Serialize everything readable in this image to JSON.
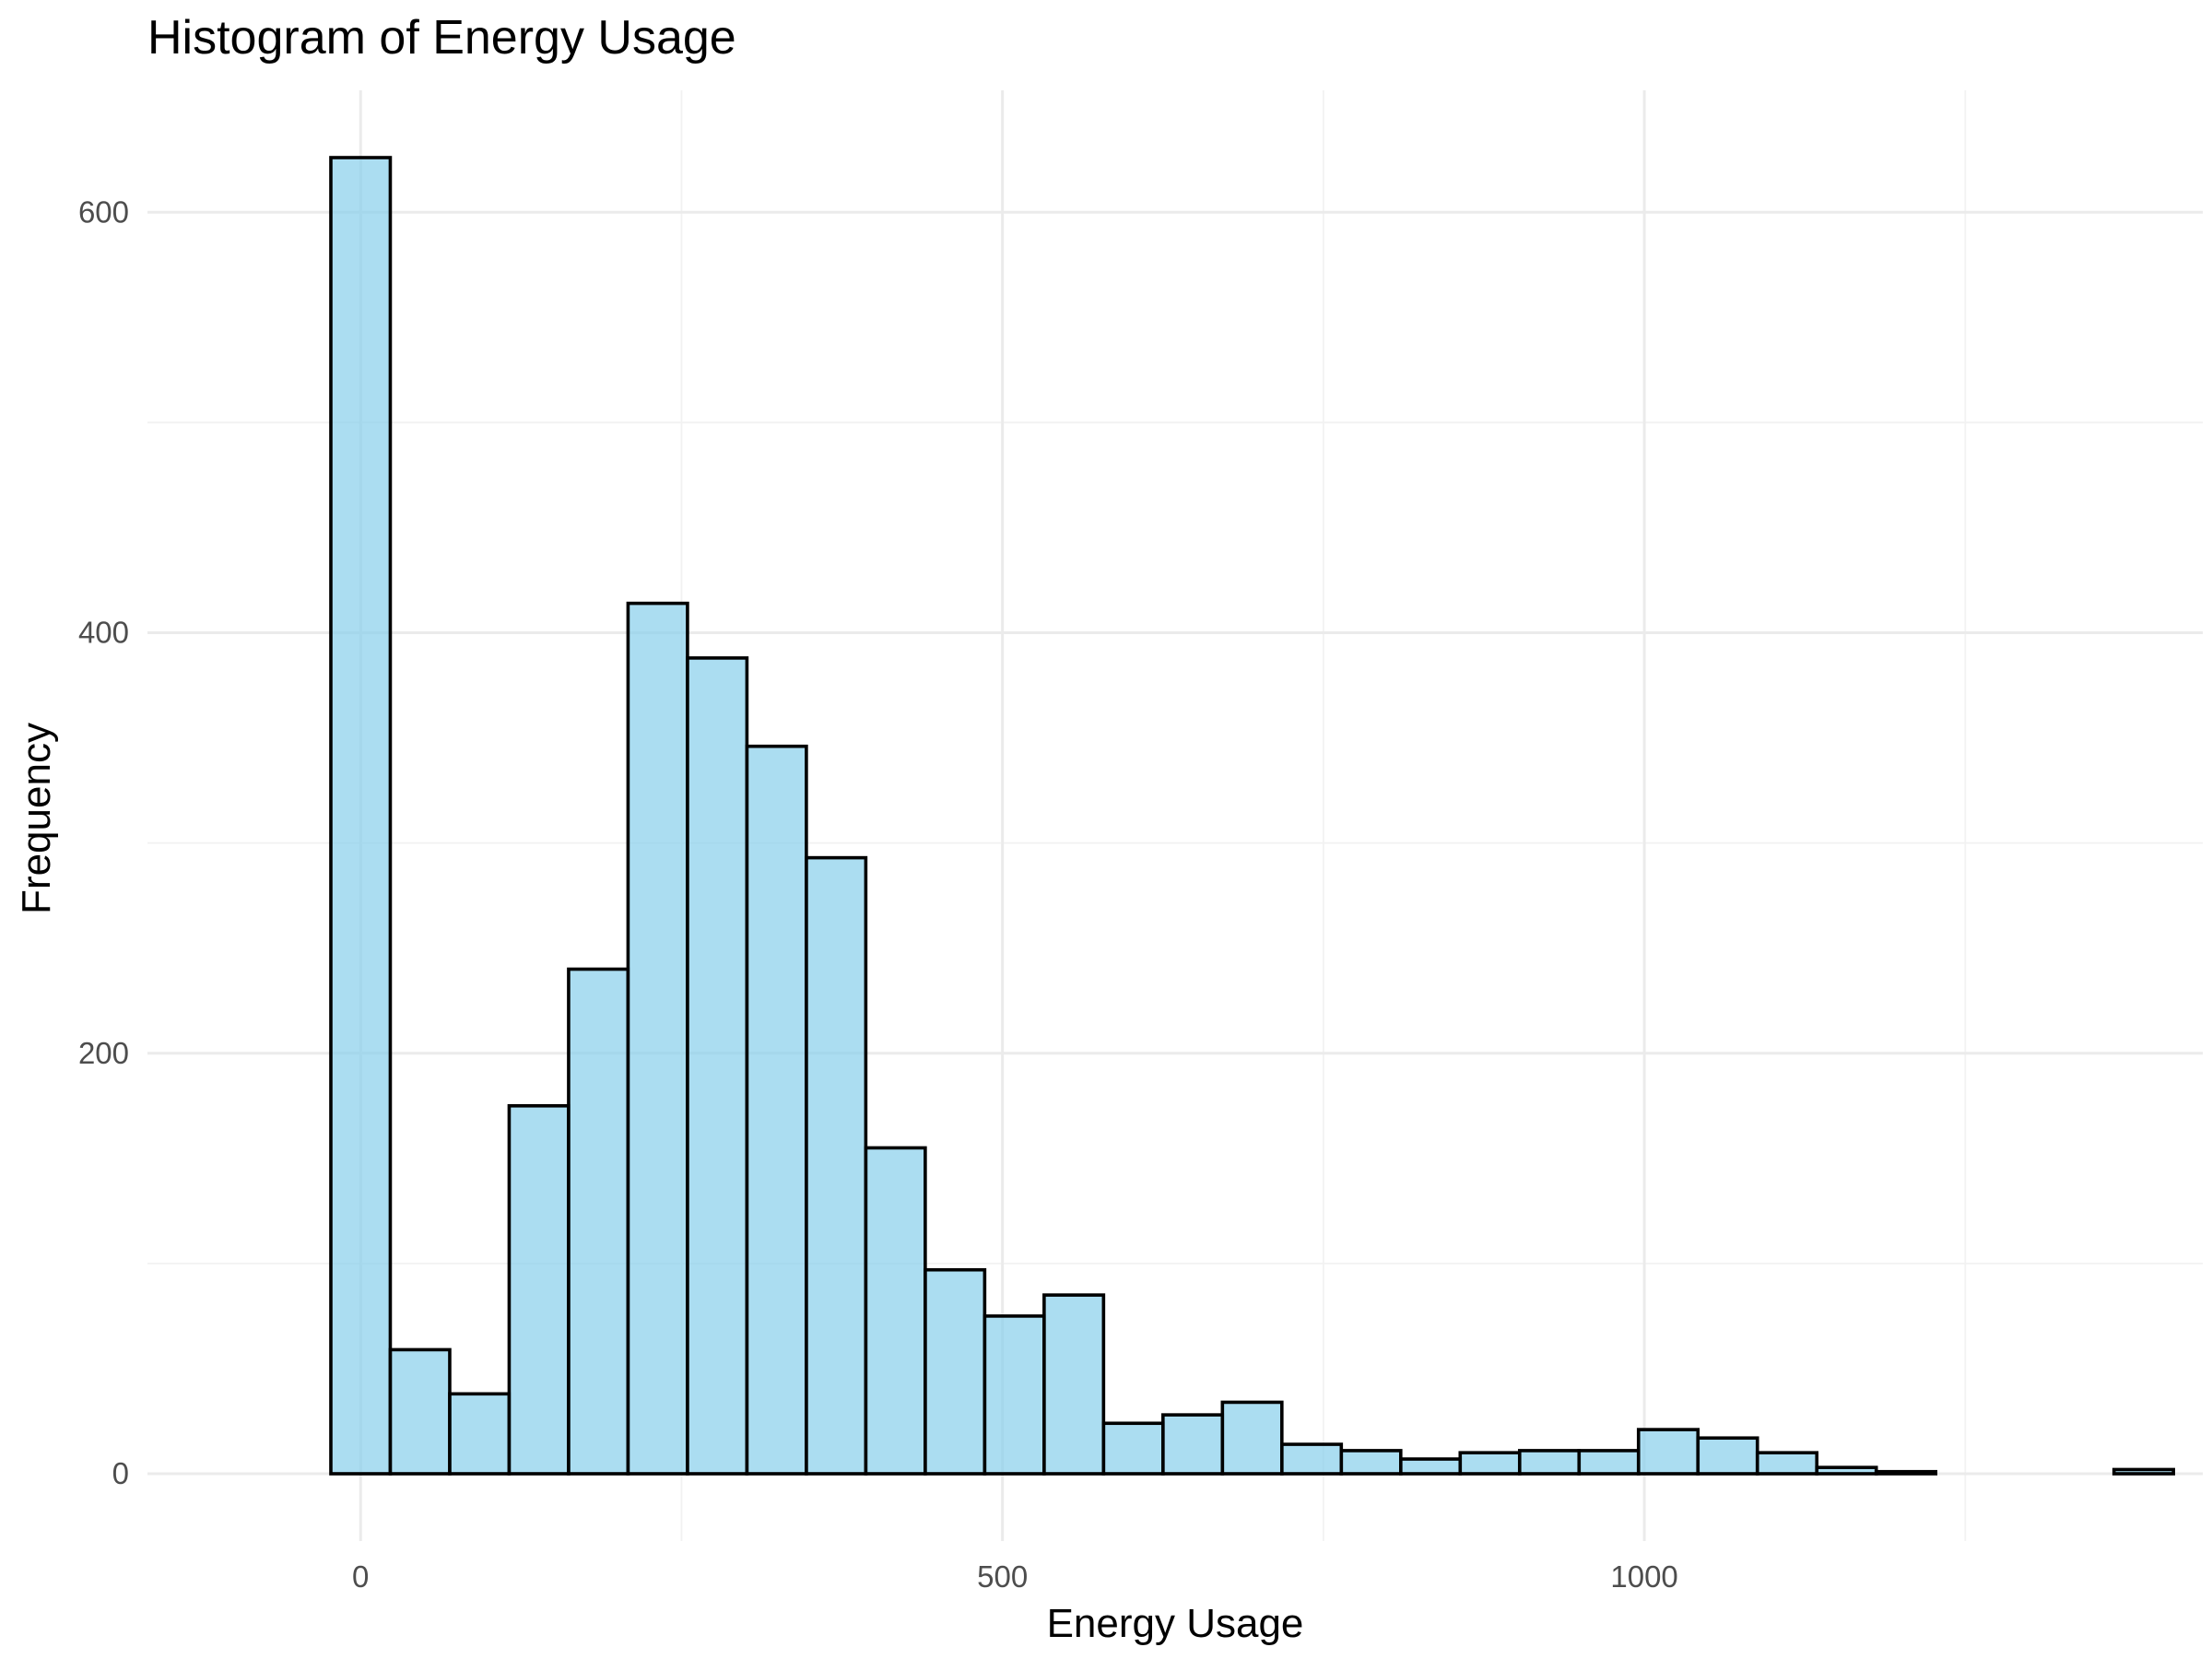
{
  "chart_data": {
    "type": "bar",
    "title": "Histogram of Energy Usage",
    "xlabel": "Energy Usage",
    "ylabel": "Frequency",
    "bin_width": 46.3,
    "bin_start": -23.15,
    "x_ticks": [
      0,
      500,
      1000
    ],
    "x_tick_labels": [
      "0",
      "500",
      "1000"
    ],
    "y_ticks": [
      0,
      200,
      400,
      600
    ],
    "y_tick_labels": [
      "0",
      "200",
      "400",
      "600"
    ],
    "xlim": [
      -166,
      1435
    ],
    "ylim": [
      -32,
      658
    ],
    "grid": true,
    "values": [
      626,
      59,
      38,
      175,
      240,
      414,
      388,
      346,
      293,
      155,
      97,
      75,
      85,
      24,
      28,
      34,
      14,
      11,
      7,
      10,
      11,
      11,
      21,
      17,
      10,
      3,
      1,
      0,
      0,
      0,
      2
    ],
    "colors": {
      "bar_fill": "#87ceeb",
      "bar_fill_opacity": 0.7,
      "bar_stroke": "#000000",
      "grid_major": "#ebebeb",
      "grid_minor": "#f2f2f2",
      "tick_text": "#4d4d4d"
    }
  }
}
